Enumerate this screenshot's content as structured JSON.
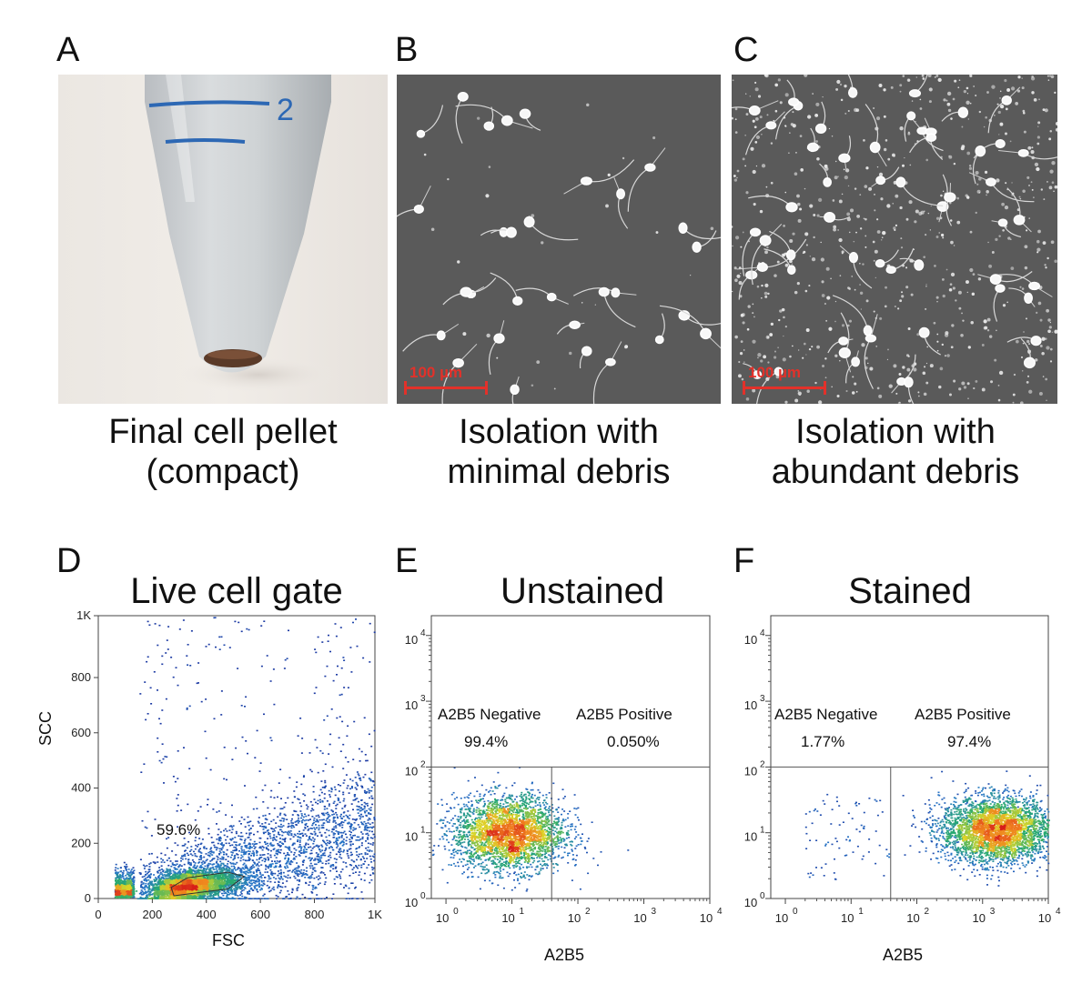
{
  "panels": {
    "a": {
      "letter": "A",
      "caption_line1": "Final cell pellet",
      "caption_line2": "(compact)",
      "tube_marking": "2"
    },
    "b": {
      "letter": "B",
      "caption_line1": "Isolation with",
      "caption_line2": "minimal debris",
      "scale_label": "100 µm"
    },
    "c": {
      "letter": "C",
      "caption_line1": "Isolation with",
      "caption_line2": "abundant debris",
      "scale_label": "100 µm"
    },
    "d": {
      "letter": "D",
      "title": "Live cell gate",
      "xlabel": "FSC",
      "ylabel": "SCC",
      "gate_label": "59.6%"
    },
    "e": {
      "letter": "E",
      "title": "Unstained",
      "xlabel": "A2B5",
      "q_left_title": "A2B5 Negative",
      "q_left_value": "99.4%",
      "q_right_title": "A2B5 Positive",
      "q_right_value": "0.050%"
    },
    "f": {
      "letter": "F",
      "title": "Stained",
      "xlabel": "A2B5",
      "q_left_title": "A2B5 Negative",
      "q_left_value": "1.77%",
      "q_right_title": "A2B5 Positive",
      "q_right_value": "97.4%"
    }
  },
  "colors": {
    "scale": "#e2312a",
    "tube_ink": "#2d68b4",
    "pellet": "#5a3a28",
    "micro_bg": "#5a5a5a"
  },
  "chart_data": [
    {
      "id": "D",
      "type": "scatter",
      "title": "Live cell gate",
      "xlabel": "FSC",
      "ylabel": "SCC",
      "xlim": [
        0,
        1024
      ],
      "ylim": [
        0,
        1024
      ],
      "x_ticks": [
        0,
        200,
        400,
        600,
        800,
        1024
      ],
      "x_tick_labels": [
        "0",
        "200",
        "400",
        "600",
        "800",
        "1K"
      ],
      "y_ticks": [
        0,
        200,
        400,
        600,
        800,
        1024
      ],
      "y_tick_labels": [
        "0",
        "200",
        "400",
        "600",
        "800",
        "1K"
      ],
      "gate_percent": "59.6%",
      "gate_polygon": [
        [
          280,
          10
        ],
        [
          480,
          35
        ],
        [
          540,
          80
        ],
        [
          480,
          95
        ],
        [
          330,
          75
        ],
        [
          270,
          40
        ]
      ]
    },
    {
      "id": "E",
      "type": "scatter",
      "title": "Unstained",
      "xlabel": "A2B5",
      "scale": "log",
      "xlim": [
        0.6,
        10000
      ],
      "ylim": [
        1,
        20000
      ],
      "x_ticks": [
        1,
        10,
        100,
        1000,
        10000
      ],
      "y_ticks": [
        1,
        10,
        100,
        1000,
        10000
      ],
      "tick_base": "10",
      "tick_exps": [
        "0",
        "1",
        "2",
        "3",
        "4"
      ],
      "quadrant_x": 40,
      "quadrant_y": 100,
      "quadrants": [
        {
          "name": "A2B5 Negative",
          "value": "99.4%"
        },
        {
          "name": "A2B5 Positive",
          "value": "0.050%"
        }
      ]
    },
    {
      "id": "F",
      "type": "scatter",
      "title": "Stained",
      "xlabel": "A2B5",
      "scale": "log",
      "xlim": [
        0.6,
        10000
      ],
      "ylim": [
        1,
        20000
      ],
      "x_ticks": [
        1,
        10,
        100,
        1000,
        10000
      ],
      "y_ticks": [
        1,
        10,
        100,
        1000,
        10000
      ],
      "tick_base": "10",
      "tick_exps": [
        "0",
        "1",
        "2",
        "3",
        "4"
      ],
      "quadrant_x": 40,
      "quadrant_y": 100,
      "quadrants": [
        {
          "name": "A2B5 Negative",
          "value": "1.77%"
        },
        {
          "name": "A2B5 Positive",
          "value": "97.4%"
        }
      ]
    }
  ]
}
